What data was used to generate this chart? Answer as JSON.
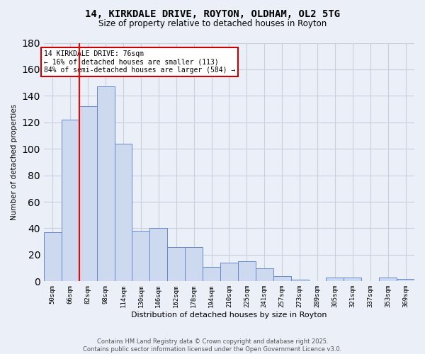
{
  "title_line1": "14, KIRKDALE DRIVE, ROYTON, OLDHAM, OL2 5TG",
  "title_line2": "Size of property relative to detached houses in Royton",
  "xlabel": "Distribution of detached houses by size in Royton",
  "ylabel": "Number of detached properties",
  "categories": [
    "50sqm",
    "66sqm",
    "82sqm",
    "98sqm",
    "114sqm",
    "130sqm",
    "146sqm",
    "162sqm",
    "178sqm",
    "194sqm",
    "210sqm",
    "225sqm",
    "241sqm",
    "257sqm",
    "273sqm",
    "289sqm",
    "305sqm",
    "321sqm",
    "337sqm",
    "353sqm",
    "369sqm"
  ],
  "values": [
    37,
    122,
    132,
    147,
    104,
    38,
    40,
    26,
    26,
    11,
    14,
    15,
    10,
    4,
    1,
    0,
    3,
    3,
    0,
    3,
    2
  ],
  "bar_color": "#ccd9ee",
  "bar_edge_color": "#6688cc",
  "grid_color": "#c8d0de",
  "background_color": "#eaeff8",
  "red_line_x": 1.5,
  "annotation_text": "14 KIRKDALE DRIVE: 76sqm\n← 16% of detached houses are smaller (113)\n84% of semi-detached houses are larger (584) →",
  "annotation_box_color": "#ffffff",
  "annotation_box_edge": "#cc0000",
  "footer_line1": "Contains HM Land Registry data © Crown copyright and database right 2025.",
  "footer_line2": "Contains public sector information licensed under the Open Government Licence v3.0.",
  "ylim": [
    0,
    180
  ]
}
